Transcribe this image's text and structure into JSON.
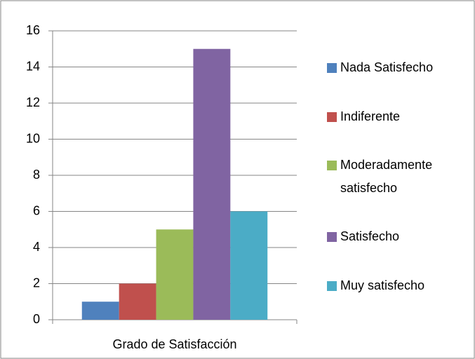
{
  "chart_data": {
    "type": "bar",
    "categories": [
      "Grado de Satisfacción"
    ],
    "series": [
      {
        "name": "Nada Satisfecho",
        "color": "#4f81bd",
        "values": [
          1
        ]
      },
      {
        "name": "Indiferente",
        "color": "#c0504d",
        "values": [
          2
        ]
      },
      {
        "name": "Moderadamente satisfecho",
        "color": "#9bbb59",
        "values": [
          5
        ]
      },
      {
        "name": "Satisfecho",
        "color": "#8064a2",
        "values": [
          15
        ]
      },
      {
        "name": "Muy satisfecho",
        "color": "#4bacc6",
        "values": [
          6
        ]
      }
    ],
    "ylim": [
      0,
      16
    ],
    "yticks": [
      0,
      2,
      4,
      6,
      8,
      10,
      12,
      14,
      16
    ],
    "grid": true,
    "legend": "right"
  }
}
